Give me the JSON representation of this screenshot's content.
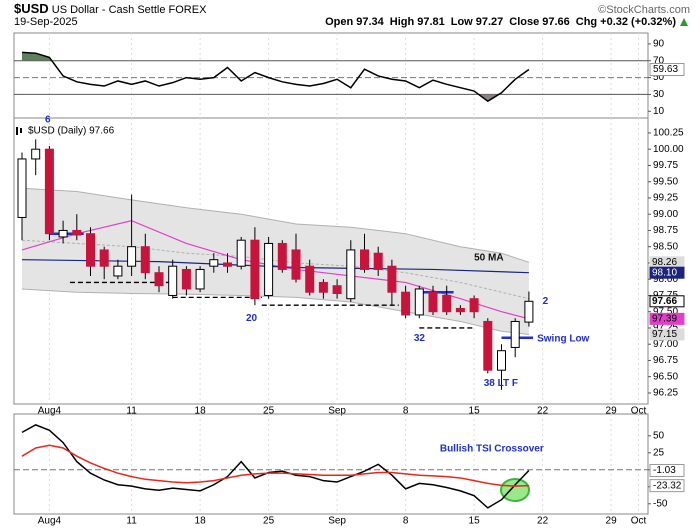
{
  "header": {
    "symbol": "$USD",
    "name": "US Dollar - Cash Settle",
    "exchange": "FOREX",
    "date": "19-Sep-2025",
    "copyright": "©StockCharts.com",
    "quote": [
      {
        "label": "Open",
        "value": 97.34
      },
      {
        "label": "High",
        "value": 97.81
      },
      {
        "label": "Low",
        "value": 97.27
      },
      {
        "label": "Close",
        "value": 97.66
      },
      {
        "label": "Chg",
        "value": "+0.32 (+0.32%)"
      }
    ]
  },
  "xticks": [
    {
      "value": 2,
      "label": "Aug4"
    },
    {
      "value": 8,
      "label": "11"
    },
    {
      "value": 13,
      "label": "18"
    },
    {
      "value": 18,
      "label": "25"
    },
    {
      "value": 23,
      "label": "Sep"
    },
    {
      "value": 28,
      "label": "8"
    },
    {
      "value": 33,
      "label": "15"
    },
    {
      "value": 38,
      "label": "22"
    },
    {
      "value": 43,
      "label": "29"
    },
    {
      "value": 45,
      "label": "Oct"
    }
  ],
  "chart_data": [
    {
      "type": "line",
      "series": [
        {
          "color": "#000000",
          "values": [
            80,
            79,
            74,
            52,
            45,
            42,
            40,
            46,
            42,
            46,
            40,
            44,
            50,
            48,
            50,
            62,
            46,
            56,
            50,
            45,
            42,
            40,
            43,
            48,
            38,
            60,
            52,
            48,
            46,
            38,
            47,
            42,
            38,
            34,
            22,
            32,
            48,
            59.63
          ]
        }
      ],
      "ylim": [
        2,
        103
      ],
      "yticks": [
        90,
        70,
        50,
        30,
        10
      ],
      "hlines": [
        70,
        30
      ],
      "dashed_hlines": [
        50
      ],
      "fill_above": {
        "value": 70,
        "color": "#5f7f5f"
      },
      "fill_below": {
        "value": 30,
        "color": "#8c8088"
      },
      "last_labels": [
        59.63
      ]
    },
    {
      "type": "candlestick",
      "legend": "$USD (Daily) 97.66",
      "open": [
        98.95,
        99.85,
        100.0,
        98.65,
        98.75,
        98.7,
        98.45,
        98.05,
        98.2,
        98.5,
        98.1,
        97.75,
        98.15,
        97.85,
        98.2,
        98.25,
        98.2,
        98.6,
        97.75,
        98.55,
        98.45,
        98.2,
        97.95,
        97.9,
        97.7,
        98.45,
        98.4,
        98.2,
        97.8,
        97.45,
        97.8,
        97.75,
        97.55,
        97.7,
        97.35,
        96.6,
        96.95,
        97.34
      ],
      "high": [
        99.95,
        100.15,
        100.05,
        98.9,
        99.0,
        98.8,
        98.5,
        98.3,
        99.3,
        98.7,
        98.2,
        98.3,
        98.2,
        98.2,
        98.4,
        98.4,
        98.65,
        98.8,
        98.65,
        98.6,
        98.7,
        98.3,
        98.0,
        98.0,
        98.6,
        98.7,
        98.5,
        98.3,
        97.9,
        97.9,
        97.9,
        97.9,
        97.6,
        97.75,
        97.4,
        97.0,
        97.4,
        97.81
      ],
      "low": [
        98.6,
        99.6,
        98.6,
        98.55,
        98.6,
        98.05,
        98.0,
        98.0,
        98.05,
        98.0,
        97.8,
        97.7,
        97.75,
        97.8,
        98.1,
        98.1,
        98.15,
        97.6,
        97.7,
        98.1,
        97.95,
        97.75,
        97.7,
        97.7,
        97.65,
        98.1,
        98.05,
        97.6,
        97.4,
        97.4,
        97.45,
        97.45,
        97.45,
        97.4,
        96.55,
        96.3,
        96.8,
        97.27
      ],
      "close": [
        99.85,
        100.0,
        98.7,
        98.75,
        98.68,
        98.2,
        98.2,
        98.2,
        98.5,
        98.1,
        97.9,
        98.2,
        97.85,
        98.15,
        98.3,
        98.2,
        98.6,
        97.7,
        98.55,
        98.15,
        98.0,
        97.8,
        97.8,
        97.78,
        98.45,
        98.15,
        98.15,
        97.8,
        97.45,
        97.85,
        97.5,
        97.5,
        97.5,
        97.5,
        96.6,
        96.9,
        97.35,
        97.66
      ],
      "up_color": "#ffffff",
      "down_color": "#c8143c",
      "ylim": [
        96.08,
        100.48
      ],
      "yticks": [
        100.25,
        {
          "value": 100,
          "label": "100.00"
        },
        99.75,
        {
          "value": 99.5,
          "label": "99.50"
        },
        99.25,
        {
          "value": 99,
          "label": "99.00"
        },
        98.75,
        {
          "value": 98.5,
          "label": "98.50"
        },
        98.25,
        {
          "value": 98,
          "label": "98.00"
        },
        97.75,
        {
          "value": 97.5,
          "label": "97.50"
        },
        97.25,
        {
          "value": 97,
          "label": "97.00"
        },
        96.75,
        {
          "value": 96.5,
          "label": "96.50"
        },
        96.25
      ],
      "band": {
        "color": "#e4e4e4",
        "edge": "#b0b0b0",
        "x": [
          0,
          4,
          8,
          12,
          16,
          20,
          24,
          28,
          32,
          35,
          37
        ],
        "upper": [
          99.4,
          99.35,
          99.22,
          99.1,
          99.0,
          98.85,
          98.8,
          98.7,
          98.5,
          98.4,
          98.26
        ],
        "lower": [
          97.85,
          97.8,
          97.78,
          97.77,
          97.75,
          97.72,
          97.65,
          97.5,
          97.35,
          97.2,
          97.15
        ],
        "middle": [
          98.6,
          98.55,
          98.5,
          98.4,
          98.35,
          98.25,
          98.2,
          98.1,
          97.95,
          97.8,
          97.7
        ]
      },
      "overlays": [
        {
          "color": "#e040c8",
          "x": [
            0,
            4,
            8,
            12,
            16,
            20,
            24,
            28,
            32,
            35,
            37
          ],
          "values": [
            98.45,
            98.7,
            98.9,
            98.55,
            98.3,
            98.15,
            98.05,
            97.95,
            97.7,
            97.5,
            97.39
          ]
        },
        {
          "color": "#1a237e",
          "x": [
            0,
            10,
            20,
            30,
            37
          ],
          "values": [
            98.3,
            98.27,
            98.18,
            98.15,
            98.1
          ]
        }
      ],
      "levels": [
        {
          "x": [
            3.5,
            11
          ],
          "value": 97.95,
          "color": "#000000",
          "dashed": true
        },
        {
          "x": [
            11,
            17.5
          ],
          "value": 97.72,
          "color": "#000000",
          "dashed": true
        },
        {
          "x": [
            17.5,
            27.5
          ],
          "value": 97.6,
          "color": "#000000",
          "dashed": true
        },
        {
          "x": [
            29,
            33
          ],
          "value": 97.25,
          "color": "#000000",
          "dashed": true
        },
        {
          "x": [
            2,
            4.5
          ],
          "value": 98.7,
          "color": "#1f2fd0",
          "dashed": false
        },
        {
          "x": [
            29,
            31.5
          ],
          "value": 97.8,
          "color": "#1f2fd0",
          "dashed": false
        },
        {
          "x": [
            35,
            37.3
          ],
          "value": 97.1,
          "color": "#1f2fd0",
          "dashed": false
        }
      ],
      "annotations": [
        {
          "text": "6",
          "x": 1.68,
          "y": 100.45,
          "color": "#1f2fd0"
        },
        {
          "text": "20",
          "x": 16.35,
          "y": 97.4,
          "color": "#1f2fd0"
        },
        {
          "text": "32",
          "x": 28.6,
          "y": 97.09,
          "color": "#1f2fd0"
        },
        {
          "text": "38 LT F",
          "x": 33.7,
          "y": 96.4,
          "color": "#1f2fd0"
        },
        {
          "text": "2",
          "x": 38,
          "y": 97.66,
          "color": "#1f2fd0"
        },
        {
          "text": "Swing Low",
          "x": 37.6,
          "y": 97.08,
          "color": "#1f2fd0"
        },
        {
          "text": "50 MA",
          "x": 33,
          "y": 98.33,
          "color": "#111111"
        }
      ],
      "price_labels": [
        {
          "value": 98.26,
          "color": "#dcdcdc",
          "text_color": "#000000"
        },
        {
          "value": {
            "value": 98.1,
            "label": "98.10"
          },
          "color": "#1a237e",
          "text_color": "#ffffff"
        },
        {
          "value": 97.66,
          "color": "#ffffff",
          "text_color": "#000000"
        },
        {
          "value": 97.39,
          "color": "#e040c8",
          "text_color": "#000000"
        },
        {
          "value": 97.15,
          "color": "#dcdcdc",
          "text_color": "#000000"
        }
      ]
    },
    {
      "type": "line",
      "series": [
        {
          "color": "#000000",
          "values": [
            55,
            66,
            58,
            40,
            12,
            -5,
            -15,
            -22,
            -24,
            -28,
            -30,
            -27,
            -29,
            -31,
            -22,
            -10,
            12,
            -12,
            -4,
            -2,
            -8,
            -10,
            -16,
            -18,
            -10,
            -2,
            8,
            -8,
            -28,
            -20,
            -22,
            -26,
            -31,
            -38,
            -56,
            -44,
            -22,
            -1.03
          ]
        },
        {
          "color": "#e8281e",
          "values": [
            20,
            32,
            36,
            32,
            20,
            10,
            2,
            -5,
            -10,
            -14,
            -16,
            -18,
            -19,
            -18,
            -16,
            -12,
            -8,
            -6,
            -5,
            -5,
            -6,
            -7,
            -8,
            -8,
            -8,
            -6,
            -4,
            -4,
            -6,
            -8,
            -9,
            -10,
            -12,
            -16,
            -20,
            -23,
            -24,
            -23.32
          ]
        }
      ],
      "ylim": [
        -65,
        82
      ],
      "yticks": [
        50,
        25,
        0,
        -25,
        -50
      ],
      "dashed_hlines": [
        0
      ],
      "last_labels": [
        -1.03,
        -23.32
      ],
      "annotations": [
        {
          "text": "Bullish TSI Crossover",
          "x": 30.5,
          "y": 31,
          "color": "#1f2fd0"
        }
      ]
    }
  ]
}
